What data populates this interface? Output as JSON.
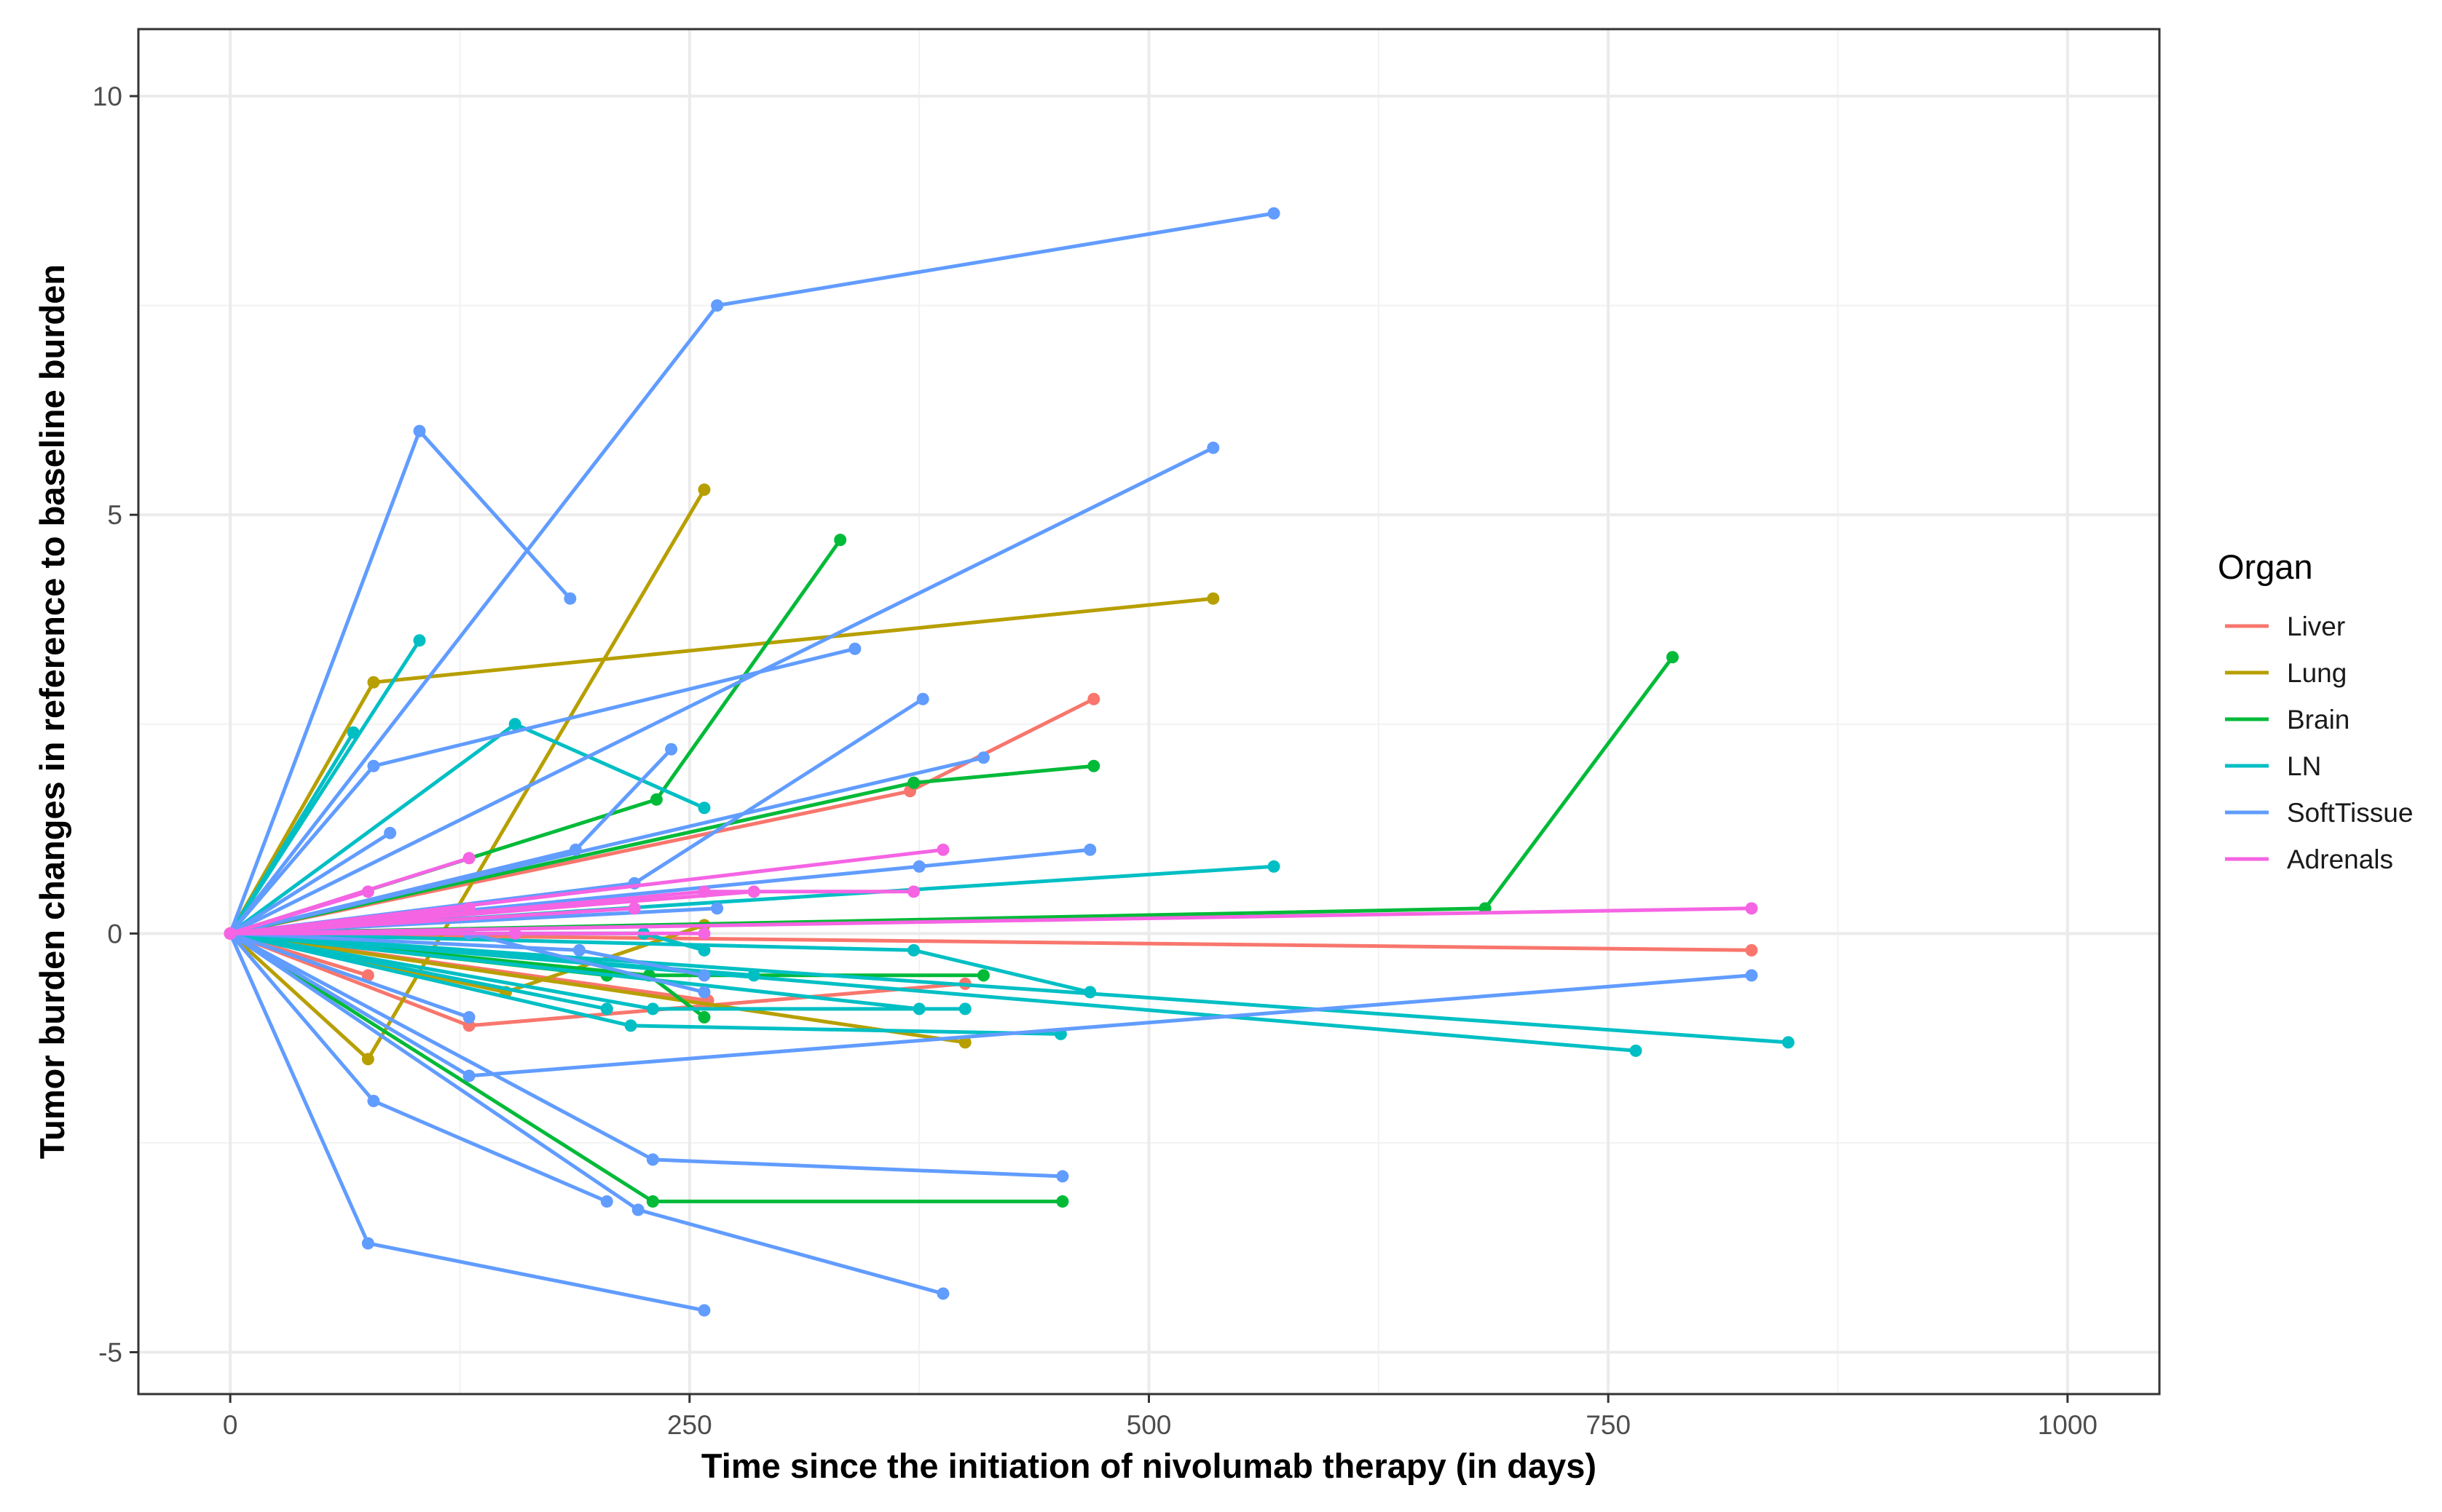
{
  "chart_data": {
    "type": "line",
    "title": "",
    "xlabel": "Time since the initiation of nivolumab therapy (in days)",
    "ylabel": "Tumor burden changes in reference to baseline burden",
    "xlim": [
      -50,
      1050
    ],
    "ylim": [
      -5.5,
      10.8
    ],
    "xticks": [
      0,
      250,
      500,
      750,
      1000
    ],
    "xtick_labels": [
      "0",
      "250",
      "500",
      "750",
      "1000"
    ],
    "yticks": [
      -5,
      0,
      5,
      10
    ],
    "ytick_labels": [
      "-5",
      "0",
      "5",
      "10"
    ],
    "grid": true,
    "legend": {
      "title": "Organ",
      "position": "right",
      "entries": [
        "Liver",
        "Lung",
        "Brain",
        "LN",
        "SoftTissue",
        "Adrenals"
      ]
    },
    "colors": {
      "Liver": "#F8766D",
      "Lung": "#B79F00",
      "Brain": "#00BA38",
      "LN": "#00BFC4",
      "SoftTissue": "#619CFF",
      "Adrenals": "#F564E3"
    },
    "series": [
      {
        "name": "Liver",
        "points": [
          [
            0,
            0
          ],
          [
            130,
            -1.1
          ],
          [
            400,
            -0.6
          ]
        ]
      },
      {
        "name": "Liver",
        "points": [
          [
            0,
            0
          ],
          [
            260,
            -0.8
          ]
        ]
      },
      {
        "name": "Liver",
        "points": [
          [
            0,
            0
          ],
          [
            75,
            -0.5
          ]
        ]
      },
      {
        "name": "Liver",
        "points": [
          [
            0,
            0
          ],
          [
            370,
            1.7
          ],
          [
            470,
            2.8
          ]
        ]
      },
      {
        "name": "Liver",
        "points": [
          [
            0,
            0
          ],
          [
            828,
            -0.2
          ]
        ]
      },
      {
        "name": "Lung",
        "points": [
          [
            0,
            0
          ],
          [
            78,
            3.0
          ],
          [
            535,
            4.0
          ]
        ]
      },
      {
        "name": "Lung",
        "points": [
          [
            0,
            0
          ],
          [
            75,
            -1.5
          ],
          [
            258,
            5.3
          ]
        ]
      },
      {
        "name": "Lung",
        "points": [
          [
            0,
            0
          ],
          [
            400,
            -1.3
          ]
        ]
      },
      {
        "name": "Lung",
        "points": [
          [
            0,
            0
          ],
          [
            150,
            -0.7
          ],
          [
            258,
            0.1
          ]
        ]
      },
      {
        "name": "Brain",
        "points": [
          [
            0,
            0
          ],
          [
            232,
            1.6
          ],
          [
            332,
            4.7
          ]
        ]
      },
      {
        "name": "Brain",
        "points": [
          [
            0,
            0
          ],
          [
            372,
            1.8
          ],
          [
            470,
            2.0
          ]
        ]
      },
      {
        "name": "Brain",
        "points": [
          [
            0,
            0
          ],
          [
            683,
            0.3
          ],
          [
            785,
            3.3
          ]
        ]
      },
      {
        "name": "Brain",
        "points": [
          [
            0,
            0
          ],
          [
            230,
            -3.2
          ],
          [
            453,
            -3.2
          ]
        ]
      },
      {
        "name": "Brain",
        "points": [
          [
            0,
            0
          ],
          [
            205,
            -0.5
          ],
          [
            410,
            -0.5
          ]
        ]
      },
      {
        "name": "Brain",
        "points": [
          [
            0,
            0
          ],
          [
            228,
            -0.5
          ],
          [
            258,
            -1.0
          ]
        ]
      },
      {
        "name": "LN",
        "points": [
          [
            0,
            0
          ],
          [
            103,
            3.5
          ]
        ]
      },
      {
        "name": "LN",
        "points": [
          [
            0,
            0
          ],
          [
            67,
            2.4
          ]
        ]
      },
      {
        "name": "LN",
        "points": [
          [
            0,
            0
          ],
          [
            155,
            2.5
          ],
          [
            258,
            1.5
          ]
        ]
      },
      {
        "name": "LN",
        "points": [
          [
            0,
            0
          ],
          [
            568,
            0.8
          ]
        ]
      },
      {
        "name": "LN",
        "points": [
          [
            0,
            0
          ],
          [
            372,
            -0.2
          ],
          [
            468,
            -0.7
          ]
        ]
      },
      {
        "name": "LN",
        "points": [
          [
            0,
            0
          ],
          [
            765,
            -1.4
          ]
        ]
      },
      {
        "name": "LN",
        "points": [
          [
            0,
            0
          ],
          [
            848,
            -1.3
          ]
        ]
      },
      {
        "name": "LN",
        "points": [
          [
            0,
            0
          ],
          [
            218,
            -1.1
          ],
          [
            452,
            -1.2
          ]
        ]
      },
      {
        "name": "LN",
        "points": [
          [
            0,
            0
          ],
          [
            225,
            0.0
          ],
          [
            258,
            -0.2
          ]
        ]
      },
      {
        "name": "LN",
        "points": [
          [
            0,
            0
          ],
          [
            230,
            -0.9
          ],
          [
            400,
            -0.9
          ]
        ]
      },
      {
        "name": "LN",
        "points": [
          [
            0,
            0
          ],
          [
            285,
            -0.5
          ]
        ]
      },
      {
        "name": "LN",
        "points": [
          [
            0,
            0
          ],
          [
            375,
            -0.9
          ]
        ]
      },
      {
        "name": "LN",
        "points": [
          [
            0,
            0
          ],
          [
            205,
            -0.9
          ]
        ]
      },
      {
        "name": "SoftTissue",
        "points": [
          [
            0,
            0
          ],
          [
            103,
            6.0
          ],
          [
            185,
            4.0
          ]
        ]
      },
      {
        "name": "SoftTissue",
        "points": [
          [
            0,
            0
          ],
          [
            265,
            7.5
          ],
          [
            568,
            8.6
          ]
        ]
      },
      {
        "name": "SoftTissue",
        "points": [
          [
            0,
            0
          ],
          [
            535,
            5.8
          ]
        ]
      },
      {
        "name": "SoftTissue",
        "points": [
          [
            0,
            0
          ],
          [
            78,
            2.0
          ],
          [
            340,
            3.4
          ]
        ]
      },
      {
        "name": "SoftTissue",
        "points": [
          [
            0,
            0
          ],
          [
            87,
            1.2
          ]
        ]
      },
      {
        "name": "SoftTissue",
        "points": [
          [
            0,
            0
          ],
          [
            188,
            1.0
          ],
          [
            240,
            2.2
          ]
        ]
      },
      {
        "name": "SoftTissue",
        "points": [
          [
            0,
            0
          ],
          [
            220,
            0.6
          ],
          [
            377,
            2.8
          ]
        ]
      },
      {
        "name": "SoftTissue",
        "points": [
          [
            0,
            0
          ],
          [
            410,
            2.1
          ]
        ]
      },
      {
        "name": "SoftTissue",
        "points": [
          [
            0,
            0
          ],
          [
            375,
            0.8
          ],
          [
            468,
            1.0
          ]
        ]
      },
      {
        "name": "SoftTissue",
        "points": [
          [
            0,
            0
          ],
          [
            265,
            0.3
          ]
        ]
      },
      {
        "name": "SoftTissue",
        "points": [
          [
            0,
            0
          ],
          [
            130,
            -1.7
          ],
          [
            828,
            -0.5
          ]
        ]
      },
      {
        "name": "SoftTissue",
        "points": [
          [
            0,
            0
          ],
          [
            78,
            -2.0
          ],
          [
            205,
            -3.2
          ]
        ]
      },
      {
        "name": "SoftTissue",
        "points": [
          [
            0,
            0
          ],
          [
            75,
            -3.7
          ],
          [
            258,
            -4.5
          ]
        ]
      },
      {
        "name": "SoftTissue",
        "points": [
          [
            0,
            0
          ],
          [
            230,
            -2.7
          ],
          [
            453,
            -2.9
          ]
        ]
      },
      {
        "name": "SoftTissue",
        "points": [
          [
            0,
            0
          ],
          [
            222,
            -3.3
          ],
          [
            388,
            -4.3
          ]
        ]
      },
      {
        "name": "SoftTissue",
        "points": [
          [
            0,
            0
          ],
          [
            130,
            -1.0
          ]
        ]
      },
      {
        "name": "SoftTissue",
        "points": [
          [
            0,
            0
          ],
          [
            130,
            0.0
          ],
          [
            258,
            -0.7
          ]
        ]
      },
      {
        "name": "SoftTissue",
        "points": [
          [
            0,
            0
          ],
          [
            190,
            -0.2
          ],
          [
            258,
            -0.5
          ]
        ]
      },
      {
        "name": "Adrenals",
        "points": [
          [
            0,
            0
          ],
          [
            75,
            0.5
          ]
        ]
      },
      {
        "name": "Adrenals",
        "points": [
          [
            0,
            0
          ],
          [
            130,
            0.9
          ]
        ]
      },
      {
        "name": "Adrenals",
        "points": [
          [
            0,
            0
          ],
          [
            388,
            1.0
          ]
        ]
      },
      {
        "name": "Adrenals",
        "points": [
          [
            0,
            0
          ],
          [
            258,
            0.5
          ],
          [
            372,
            0.5
          ]
        ]
      },
      {
        "name": "Adrenals",
        "points": [
          [
            0,
            0
          ],
          [
            285,
            0.5
          ]
        ]
      },
      {
        "name": "Adrenals",
        "points": [
          [
            0,
            0
          ],
          [
            828,
            0.3
          ]
        ]
      },
      {
        "name": "Adrenals",
        "points": [
          [
            0,
            0
          ],
          [
            130,
            0.3
          ]
        ]
      },
      {
        "name": "Adrenals",
        "points": [
          [
            0,
            0
          ],
          [
            155,
            0.0
          ],
          [
            258,
            0.0
          ]
        ]
      },
      {
        "name": "Adrenals",
        "points": [
          [
            0,
            0
          ],
          [
            220,
            0.3
          ]
        ]
      }
    ]
  }
}
